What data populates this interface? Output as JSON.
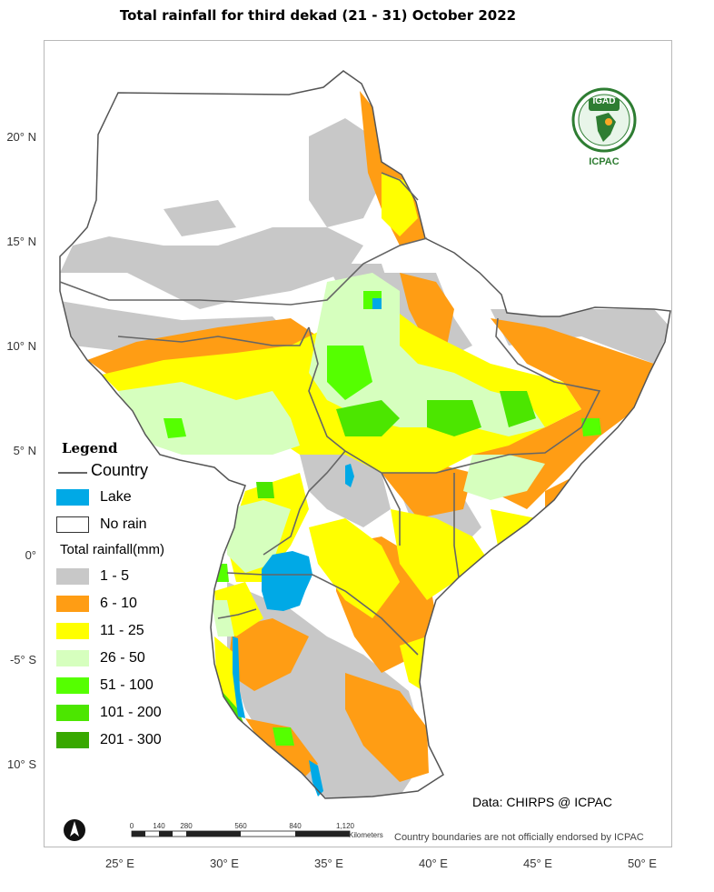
{
  "title": "Total rainfall  for  third  dekad (21 - 31)  October 2022",
  "latitudes": [
    "20° N",
    "15° N",
    "10° N",
    "5° N",
    "0°",
    "-5° S",
    "10° S"
  ],
  "longitudes": [
    "25° E",
    "30° E",
    "35° E",
    "40° E",
    "45° E",
    "50° E"
  ],
  "legend": {
    "title": "Legend",
    "country": "Country",
    "lake": "Lake",
    "no_rain": "No rain",
    "total_rainfall": "Total rainfall(mm)",
    "classes": [
      {
        "label": "1 - 5",
        "color": "#c8c8c8"
      },
      {
        "label": "6 - 10",
        "color": "#ff9d14"
      },
      {
        "label": "11 - 25",
        "color": "#ffff00"
      },
      {
        "label": "26 - 50",
        "color": "#d6ffbe"
      },
      {
        "label": "51 - 100",
        "color": "#55ff00"
      },
      {
        "label": "101 - 200",
        "color": "#4ce600"
      },
      {
        "label": "201 - 300",
        "color": "#38a800"
      }
    ],
    "lake_color": "#00a9e6"
  },
  "credit": "Data: CHIRPS @ ICPAC",
  "note": "Country boundaries are not officially endorsed by ICPAC",
  "scale": {
    "ticks": [
      "0",
      "140",
      "280",
      "560",
      "840",
      "1,120"
    ],
    "unit": "Kilometers"
  },
  "logo": {
    "top": "IGAD",
    "bottom": "ICPAC"
  }
}
